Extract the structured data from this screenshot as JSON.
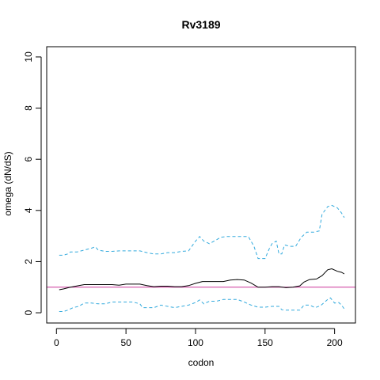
{
  "chart_data": {
    "type": "line",
    "title": "Rv3189",
    "xlabel": "codon",
    "ylabel": "omega (dN/dS)",
    "xlim": [
      -7,
      215
    ],
    "ylim": [
      -0.4,
      10.4
    ],
    "x_ticks": [
      0,
      50,
      100,
      150,
      200
    ],
    "y_ticks": [
      0,
      2,
      4,
      6,
      8,
      10
    ],
    "grid": false,
    "legend": "none",
    "reference_line": {
      "y": 1,
      "color": "#CC3399"
    },
    "series": [
      {
        "style": "solid",
        "color": "#000000",
        "points": [
          [
            2,
            0.9
          ],
          [
            5,
            0.93
          ],
          [
            10,
            1.0
          ],
          [
            15,
            1.05
          ],
          [
            20,
            1.1
          ],
          [
            25,
            1.1
          ],
          [
            30,
            1.1
          ],
          [
            35,
            1.1
          ],
          [
            40,
            1.1
          ],
          [
            45,
            1.08
          ],
          [
            50,
            1.12
          ],
          [
            55,
            1.12
          ],
          [
            60,
            1.12
          ],
          [
            65,
            1.06
          ],
          [
            70,
            1.02
          ],
          [
            75,
            1.04
          ],
          [
            80,
            1.04
          ],
          [
            85,
            1.02
          ],
          [
            90,
            1.02
          ],
          [
            95,
            1.06
          ],
          [
            100,
            1.15
          ],
          [
            105,
            1.22
          ],
          [
            110,
            1.22
          ],
          [
            115,
            1.22
          ],
          [
            120,
            1.22
          ],
          [
            125,
            1.28
          ],
          [
            130,
            1.3
          ],
          [
            135,
            1.28
          ],
          [
            140,
            1.16
          ],
          [
            145,
            1.0
          ],
          [
            150,
            1.0
          ],
          [
            155,
            1.02
          ],
          [
            160,
            1.02
          ],
          [
            165,
            0.98
          ],
          [
            170,
            1.0
          ],
          [
            175,
            1.05
          ],
          [
            178,
            1.2
          ],
          [
            182,
            1.3
          ],
          [
            187,
            1.32
          ],
          [
            191,
            1.45
          ],
          [
            195,
            1.68
          ],
          [
            198,
            1.72
          ],
          [
            202,
            1.62
          ],
          [
            205,
            1.58
          ],
          [
            207,
            1.52
          ]
        ]
      },
      {
        "style": "dashed",
        "color": "#33AADD",
        "points": [
          [
            2,
            2.25
          ],
          [
            5,
            2.25
          ],
          [
            8,
            2.3
          ],
          [
            10,
            2.38
          ],
          [
            15,
            2.38
          ],
          [
            20,
            2.45
          ],
          [
            25,
            2.52
          ],
          [
            28,
            2.58
          ],
          [
            30,
            2.45
          ],
          [
            35,
            2.4
          ],
          [
            40,
            2.4
          ],
          [
            45,
            2.42
          ],
          [
            50,
            2.42
          ],
          [
            55,
            2.42
          ],
          [
            60,
            2.42
          ],
          [
            65,
            2.35
          ],
          [
            70,
            2.3
          ],
          [
            75,
            2.3
          ],
          [
            80,
            2.35
          ],
          [
            85,
            2.35
          ],
          [
            90,
            2.4
          ],
          [
            95,
            2.42
          ],
          [
            100,
            2.8
          ],
          [
            103,
            2.98
          ],
          [
            106,
            2.8
          ],
          [
            110,
            2.7
          ],
          [
            115,
            2.85
          ],
          [
            118,
            2.95
          ],
          [
            122,
            2.98
          ],
          [
            128,
            2.98
          ],
          [
            133,
            2.98
          ],
          [
            138,
            2.98
          ],
          [
            142,
            2.6
          ],
          [
            145,
            2.12
          ],
          [
            150,
            2.12
          ],
          [
            153,
            2.5
          ],
          [
            155,
            2.7
          ],
          [
            158,
            2.8
          ],
          [
            160,
            2.3
          ],
          [
            162,
            2.3
          ],
          [
            164,
            2.65
          ],
          [
            168,
            2.6
          ],
          [
            172,
            2.6
          ],
          [
            176,
            2.95
          ],
          [
            180,
            3.15
          ],
          [
            185,
            3.15
          ],
          [
            189,
            3.2
          ],
          [
            191,
            3.85
          ],
          [
            195,
            4.15
          ],
          [
            198,
            4.2
          ],
          [
            202,
            4.1
          ],
          [
            205,
            3.9
          ],
          [
            207,
            3.72
          ]
        ]
      },
      {
        "style": "dashed",
        "color": "#33AADD",
        "points": [
          [
            2,
            0.05
          ],
          [
            5,
            0.05
          ],
          [
            8,
            0.1
          ],
          [
            12,
            0.2
          ],
          [
            16,
            0.25
          ],
          [
            20,
            0.38
          ],
          [
            25,
            0.38
          ],
          [
            30,
            0.35
          ],
          [
            35,
            0.35
          ],
          [
            40,
            0.42
          ],
          [
            45,
            0.42
          ],
          [
            50,
            0.42
          ],
          [
            55,
            0.42
          ],
          [
            60,
            0.35
          ],
          [
            62,
            0.2
          ],
          [
            65,
            0.2
          ],
          [
            70,
            0.2
          ],
          [
            75,
            0.3
          ],
          [
            80,
            0.25
          ],
          [
            85,
            0.2
          ],
          [
            90,
            0.25
          ],
          [
            95,
            0.3
          ],
          [
            100,
            0.4
          ],
          [
            103,
            0.5
          ],
          [
            106,
            0.35
          ],
          [
            110,
            0.45
          ],
          [
            115,
            0.45
          ],
          [
            120,
            0.52
          ],
          [
            125,
            0.52
          ],
          [
            130,
            0.52
          ],
          [
            135,
            0.42
          ],
          [
            140,
            0.3
          ],
          [
            145,
            0.22
          ],
          [
            150,
            0.22
          ],
          [
            155,
            0.25
          ],
          [
            160,
            0.25
          ],
          [
            162,
            0.12
          ],
          [
            165,
            0.1
          ],
          [
            170,
            0.1
          ],
          [
            175,
            0.1
          ],
          [
            178,
            0.3
          ],
          [
            182,
            0.3
          ],
          [
            186,
            0.2
          ],
          [
            190,
            0.28
          ],
          [
            195,
            0.52
          ],
          [
            197,
            0.58
          ],
          [
            200,
            0.38
          ],
          [
            203,
            0.4
          ],
          [
            205,
            0.3
          ],
          [
            207,
            0.15
          ]
        ]
      }
    ]
  }
}
